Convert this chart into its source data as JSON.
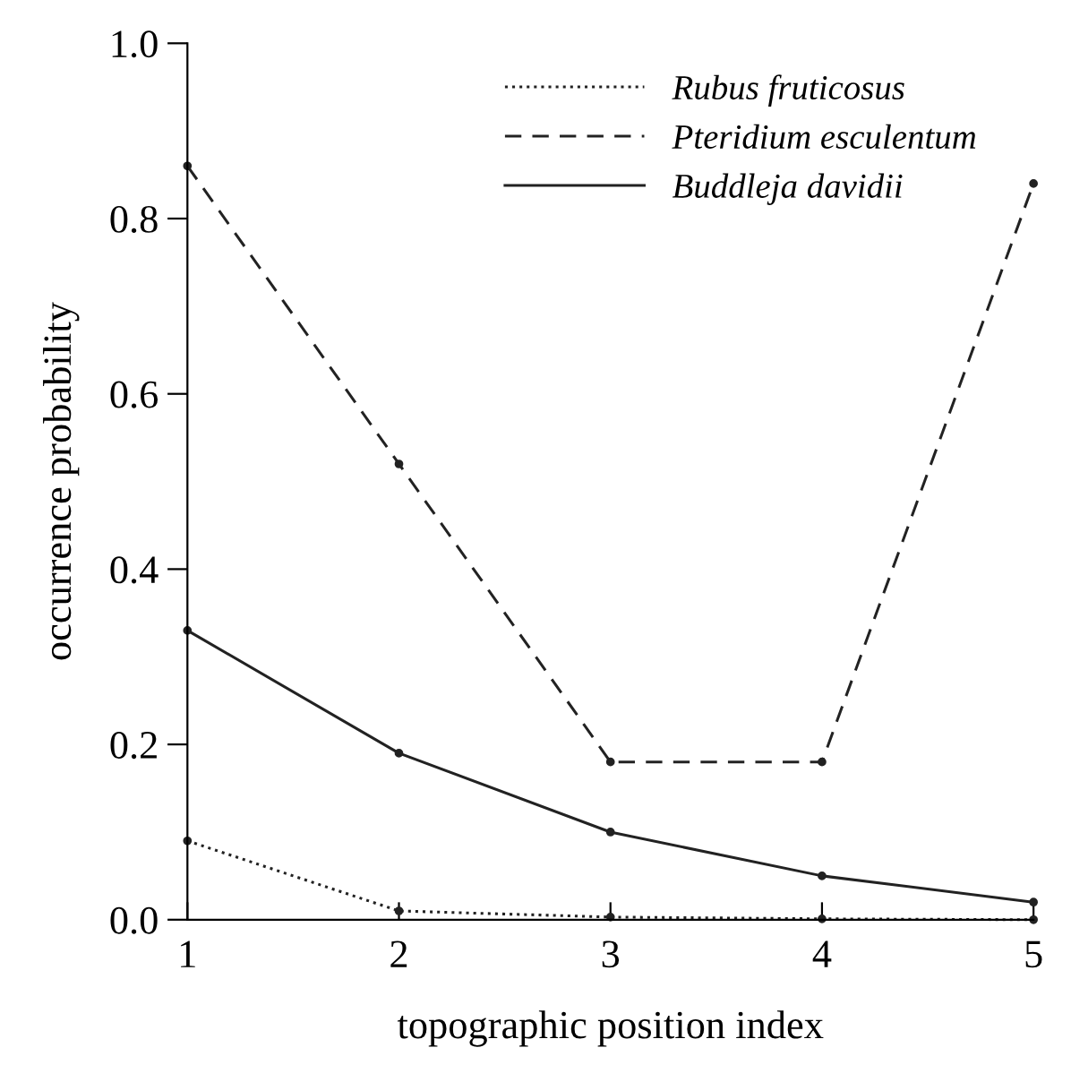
{
  "chart_data": {
    "type": "line",
    "xlabel": "topographic position index",
    "ylabel": "occurrence probability",
    "x": [
      1,
      2,
      3,
      4,
      5
    ],
    "xlim": [
      1,
      5
    ],
    "xticks": [
      1,
      2,
      3,
      4,
      5
    ],
    "ylim": [
      0,
      1
    ],
    "yticks": [
      {
        "value": 0,
        "label": "0.0"
      },
      {
        "value": 0.2,
        "label": "0.2"
      },
      {
        "value": 0.4,
        "label": "0.4"
      },
      {
        "value": 0.6,
        "label": "0.6"
      },
      {
        "value": 0.8,
        "label": "0.8"
      },
      {
        "value": 1,
        "label": "1.0"
      }
    ],
    "grid": false,
    "legend": "top right",
    "marker": "circle",
    "series": [
      {
        "name": "Rubus fruticosus",
        "color": "#222222",
        "line_style": "dotted",
        "values": [
          0.09,
          0.01,
          0.003,
          0.001,
          0.0
        ]
      },
      {
        "name": "Pteridium esculentum",
        "color": "#222222",
        "line_style": "dashed",
        "values": [
          0.86,
          0.52,
          0.18,
          0.18,
          0.84
        ]
      },
      {
        "name": "Buddleja davidii",
        "color": "#222222",
        "line_style": "solid",
        "values": [
          0.33,
          0.19,
          0.1,
          0.05,
          0.02
        ]
      }
    ]
  }
}
